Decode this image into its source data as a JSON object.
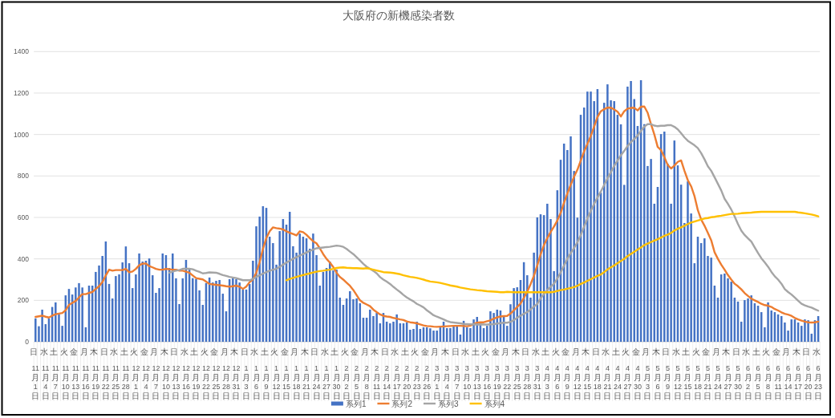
{
  "chart_data": {
    "type": "bar",
    "title": "大阪府の新機感染者数",
    "categories": [
      "日 11月1日",
      null,
      null,
      "水 11月4日",
      null,
      null,
      "土 11月7日",
      null,
      null,
      "火 11月10日",
      null,
      null,
      "金 11月13日",
      null,
      null,
      "月 11月16日",
      null,
      null,
      "木 11月19日",
      null,
      null,
      "日 11月22日",
      null,
      null,
      "水 11月25日",
      null,
      null,
      "土 11月28日",
      null,
      null,
      "火 12月1日",
      null,
      null,
      "金 12月4日",
      null,
      null,
      "月 12月7日",
      null,
      null,
      "木 12月10日",
      null,
      null,
      "日 12月13日",
      null,
      null,
      "水 12月16日",
      null,
      null,
      "土 12月19日",
      null,
      null,
      "火 12月22日",
      null,
      null,
      "金 12月25日",
      null,
      null,
      "月 12月28日",
      null,
      null,
      "木 12月31日",
      null,
      null,
      "日 1月3日",
      null,
      null,
      "水 1月6日",
      null,
      null,
      "土 1月9日",
      null,
      null,
      "火 1月12日",
      null,
      null,
      "金 1月15日",
      null,
      null,
      "月 1月18日",
      null,
      null,
      "木 1月21日",
      null,
      null,
      "日 1月24日",
      null,
      null,
      "水 1月27日",
      null,
      null,
      "土 1月30日",
      null,
      null,
      "火 2月2日",
      null,
      null,
      "金 2月5日",
      null,
      null,
      "月 2月8日",
      null,
      null,
      "木 2月11日",
      null,
      null,
      "日 2月14日",
      null,
      null,
      "水 2月17日",
      null,
      null,
      "土 2月20日",
      null,
      null,
      "火 2月23日",
      null,
      null,
      "金 2月26日",
      null,
      null,
      "月 3月1日",
      null,
      null,
      "木 3月4日",
      null,
      null,
      "日 3月7日",
      null,
      null,
      "水 3月10日",
      null,
      null,
      "土 3月13日",
      null,
      null,
      "火 3月16日",
      null,
      null,
      "金 3月19日",
      null,
      null,
      "月 3月22日",
      null,
      null,
      "木 3月25日",
      null,
      null,
      "日 3月28日",
      null,
      null,
      "水 3月31日",
      null,
      null,
      "土 4月3日",
      null,
      null,
      "火 4月6日",
      null,
      null,
      "金 4月9日",
      null,
      null,
      "月 4月12日",
      null,
      null,
      "木 4月15日",
      null,
      null,
      "日 4月18日",
      null,
      null,
      "水 4月21日",
      null,
      null,
      "土 4月24日",
      null,
      null,
      "火 4月27日",
      null,
      null,
      "金 4月30日",
      null,
      null,
      "月 5月3日",
      null,
      null,
      "木 5月6日",
      null,
      null,
      "日 5月9日",
      null,
      null,
      "水 5月12日",
      null,
      null,
      "土 5月15日",
      null,
      null,
      "火 5月18日",
      null,
      null,
      "金 5月21日",
      null,
      null,
      "月 5月24日",
      null,
      null,
      "木 5月27日",
      null,
      null,
      "日 5月30日",
      null,
      null,
      "水 6月2日",
      null,
      null,
      "土 6月5日",
      null,
      null,
      "火 6月8日",
      null,
      null,
      "金 6月11日",
      null,
      null,
      "月 6月14日",
      null,
      null,
      "木 6月17日",
      null,
      null,
      "日 6月20日",
      null,
      null,
      "水 6月23日"
    ],
    "series": [
      {
        "name": "系列1",
        "color": "#4472c4",
        "values": [
          113,
          75,
          155,
          85,
          113,
          168,
          190,
          133,
          77,
          224,
          255,
          228,
          262,
          283,
          262,
          70,
          271,
          271,
          337,
          368,
          414,
          484,
          279,
          209,
          317,
          325,
          383,
          460,
          379,
          259,
          325,
          426,
          387,
          391,
          402,
          321,
          236,
          259,
          426,
          418,
          356,
          426,
          306,
          182,
          306,
          395,
          348,
          307,
          303,
          248,
          178,
          283,
          310,
          286,
          294,
          298,
          232,
          147,
          302,
          306,
          302,
          286,
          252,
          252,
          279,
          391,
          557,
          604,
          654,
          646,
          507,
          476,
          372,
          534,
          592,
          565,
          627,
          461,
          430,
          522,
          507,
          499,
          449,
          522,
          418,
          271,
          337,
          356,
          387,
          344,
          348,
          213,
          178,
          209,
          244,
          205,
          209,
          186,
          116,
          116,
          155,
          124,
          139,
          89,
          139,
          97,
          89,
          97,
          132,
          89,
          89,
          93,
          58,
          62,
          97,
          62,
          70,
          70,
          65,
          54,
          54,
          77,
          97,
          66,
          66,
          77,
          77,
          35,
          101,
          70,
          66,
          108,
          120,
          81,
          66,
          77,
          147,
          139,
          155,
          151,
          126,
          77,
          181,
          259,
          263,
          298,
          384,
          321,
          213,
          430,
          600,
          615,
          611,
          666,
          592,
          341,
          731,
          878,
          956,
          925,
          991,
          824,
          599,
          1095,
          1130,
          1207,
          1207,
          1161,
          1219,
          719,
          1153,
          1242,
          1165,
          1161,
          1095,
          1049,
          757,
          1231,
          1258,
          1171,
          1041,
          1262,
          1050,
          848,
          882,
          666,
          747,
          1002,
          1014,
          859,
          666,
          971,
          851,
          758,
          573,
          774,
          619,
          379,
          507,
          476,
          499,
          414,
          406,
          271,
          213,
          325,
          329,
          306,
          290,
          213,
          194,
          97,
          201,
          209,
          224,
          186,
          174,
          143,
          70,
          190,
          151,
          143,
          132,
          124,
          93,
          54,
          108,
          108,
          93,
          77,
          108,
          104,
          39,
          104,
          124
        ]
      },
      {
        "name": "系列2",
        "type": "line",
        "color": "#ed7d31",
        "values": [
          120,
          123,
          126,
          121,
          117,
          126,
          133,
          136,
          139,
          152,
          178,
          188,
          197,
          214,
          230,
          230,
          236,
          240,
          255,
          268,
          288,
          320,
          348,
          343,
          346,
          346,
          346,
          352,
          335,
          339,
          352,
          369,
          377,
          378,
          365,
          359,
          352,
          348,
          348,
          352,
          350,
          348,
          348,
          343,
          343,
          338,
          333,
          320,
          307,
          304,
          301,
          290,
          279,
          277,
          275,
          273,
          271,
          268,
          266,
          268,
          271,
          266,
          255,
          266,
          288,
          301,
          333,
          384,
          449,
          500,
          533,
          552,
          548,
          546,
          542,
          533,
          526,
          520,
          513,
          533,
          529,
          516,
          500,
          485,
          475,
          451,
          423,
          400,
          382,
          361,
          333,
          313,
          300,
          285,
          270,
          250,
          225,
          200,
          188,
          180,
          172,
          155,
          143,
          132,
          125,
          122,
          120,
          115,
          112,
          108,
          105,
          98,
          94,
          92,
          89,
          84,
          79,
          76,
          75,
          73,
          72,
          73,
          74,
          75,
          76,
          77,
          77,
          77,
          76,
          75,
          78,
          86,
          92,
          94,
          94,
          99,
          103,
          112,
          118,
          122,
          124,
          125,
          136,
          152,
          168,
          184,
          212,
          242,
          278,
          319,
          368,
          422,
          466,
          500,
          530,
          556,
          585,
          622,
          671,
          715,
          758,
          796,
          830,
          874,
          918,
          955,
          993,
          1038,
          1084,
          1112,
          1122,
          1130,
          1129,
          1121,
          1110,
          1087,
          1112,
          1125,
          1128,
          1129,
          1116,
          1134,
          1135,
          1105,
          1050,
          1000,
          940,
          925,
          890,
          853,
          836,
          850,
          868,
          875,
          825,
          780,
          750,
          703,
          635,
          590,
          560,
          525,
          490,
          432,
          400,
          372,
          348,
          322,
          300,
          280,
          268,
          253,
          235,
          221,
          208,
          200,
          192,
          183,
          177,
          174,
          168,
          158,
          151,
          142,
          135,
          131,
          125,
          115,
          108,
          102,
          97,
          94,
          93,
          94,
          97
        ]
      },
      {
        "name": "系列3",
        "type": "line",
        "color": "#a5a5a5",
        "values": [
          null,
          null,
          null,
          null,
          null,
          null,
          null,
          null,
          null,
          null,
          null,
          null,
          null,
          null,
          null,
          null,
          null,
          null,
          null,
          null,
          null,
          null,
          null,
          null,
          null,
          null,
          null,
          null,
          null,
          null,
          null,
          null,
          null,
          null,
          null,
          null,
          null,
          null,
          null,
          null,
          333,
          339,
          343,
          346,
          352,
          352,
          352,
          350,
          343,
          337,
          330,
          332,
          335,
          334,
          333,
          328,
          322,
          318,
          313,
          310,
          307,
          302,
          297,
          297,
          297,
          303,
          313,
          321,
          329,
          336,
          343,
          348,
          352,
          362,
          372,
          382,
          391,
          400,
          408,
          416,
          423,
          431,
          439,
          445,
          451,
          453,
          455,
          457,
          458,
          461,
          464,
          462,
          458,
          448,
          435,
          423,
          408,
          392,
          376,
          362,
          352,
          342,
          330,
          312,
          300,
          290,
          279,
          265,
          252,
          240,
          226,
          214,
          204,
          195,
          183,
          175,
          166,
          152,
          140,
          128,
          121,
          115,
          108,
          100,
          95,
          93,
          91,
          89,
          86,
          85,
          84,
          84,
          83,
          84,
          83,
          83,
          84,
          85,
          88,
          90,
          92,
          92,
          96,
          105,
          116,
          126,
          135,
          143,
          156,
          170,
          182,
          210,
          230,
          250,
          266,
          280,
          305,
          335,
          368,
          400,
          428,
          452,
          480,
          515,
          555,
          595,
          632,
          665,
          695,
          725,
          757,
          788,
          818,
          848,
          874,
          900,
          921,
          945,
          963,
          978,
          995,
          1017,
          1038,
          1050,
          1050,
          1043,
          1040,
          1042,
          1042,
          1045,
          1045,
          1037,
          1025,
          1006,
          986,
          970,
          959,
          948,
          934,
          910,
          880,
          847,
          825,
          794,
          762,
          730,
          690,
          665,
          638,
          605,
          568,
          536,
          515,
          499,
          483,
          455,
          428,
          403,
          383,
          362,
          337,
          316,
          300,
          280,
          254,
          240,
          228,
          213,
          198,
          183,
          176,
          170,
          165,
          157,
          150
        ]
      },
      {
        "name": "系列4",
        "type": "line",
        "color": "#ffc000",
        "values": [
          null,
          null,
          null,
          null,
          null,
          null,
          null,
          null,
          null,
          null,
          null,
          null,
          null,
          null,
          null,
          null,
          null,
          null,
          null,
          null,
          null,
          null,
          null,
          null,
          null,
          null,
          null,
          null,
          null,
          null,
          null,
          null,
          null,
          null,
          null,
          null,
          null,
          null,
          null,
          null,
          null,
          null,
          null,
          null,
          null,
          null,
          null,
          null,
          null,
          null,
          null,
          null,
          null,
          null,
          null,
          null,
          null,
          null,
          null,
          null,
          null,
          null,
          null,
          null,
          null,
          null,
          null,
          null,
          null,
          null,
          null,
          null,
          null,
          null,
          null,
          297,
          303,
          308,
          313,
          318,
          322,
          326,
          330,
          334,
          338,
          341,
          343,
          346,
          348,
          352,
          356,
          358,
          359,
          357,
          356,
          355,
          355,
          354,
          353,
          355,
          352,
          348,
          344,
          340,
          336,
          335,
          334,
          332,
          329,
          326,
          321,
          317,
          313,
          311,
          308,
          304,
          300,
          295,
          291,
          289,
          287,
          284,
          280,
          276,
          272,
          269,
          266,
          262,
          259,
          256,
          253,
          251,
          249,
          248,
          246,
          244,
          243,
          242,
          241,
          239,
          239,
          241,
          240,
          239,
          239,
          239,
          239,
          239,
          239,
          239,
          239,
          239,
          239,
          239,
          239,
          241,
          245,
          249,
          252,
          256,
          260,
          264,
          270,
          279,
          286,
          294,
          302,
          310,
          318,
          325,
          336,
          349,
          359,
          368,
          379,
          390,
          400,
          413,
          424,
          434,
          445,
          455,
          466,
          474,
          481,
          488,
          495,
          503,
          511,
          517,
          525,
          537,
          545,
          552,
          560,
          568,
          575,
          580,
          585,
          590,
          595,
          597,
          601,
          603,
          606,
          608,
          611,
          614,
          617,
          617,
          618,
          620,
          621,
          622,
          623,
          625,
          626,
          627,
          627,
          627,
          627,
          627,
          627,
          627,
          627,
          627,
          627,
          627,
          624,
          622,
          620,
          617,
          614,
          610,
          605
        ]
      }
    ],
    "ylim": [
      0,
      1400
    ],
    "yticks": [
      0,
      200,
      400,
      600,
      800,
      1000,
      1200,
      1400
    ],
    "grid": "y",
    "legend": "bottom",
    "line_style": "solid"
  }
}
